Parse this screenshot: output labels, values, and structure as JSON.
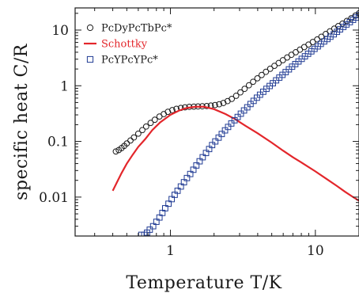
{
  "chart_data": {
    "type": "scatter",
    "xlabel": "Temperature T/K",
    "ylabel": "specific heat C/R",
    "xscale": "log",
    "yscale": "log",
    "xlim": [
      0.22,
      20
    ],
    "ylim": [
      0.002,
      25
    ],
    "x_ticks": [
      {
        "value": 1,
        "label": "1"
      },
      {
        "value": 10,
        "label": "10"
      }
    ],
    "y_ticks": [
      {
        "value": 0.01,
        "label": "0.01"
      },
      {
        "value": 0.1,
        "label": "0.1"
      },
      {
        "value": 1,
        "label": "1"
      },
      {
        "value": 10,
        "label": "10"
      }
    ],
    "grid": false,
    "legend_position": "top-left",
    "series": [
      {
        "name": "PcDyPcTbPc*",
        "marker": "circle-open",
        "color": "#1a1a1a",
        "points": [
          [
            0.42,
            0.066
          ],
          [
            0.44,
            0.07
          ],
          [
            0.46,
            0.076
          ],
          [
            0.48,
            0.083
          ],
          [
            0.5,
            0.092
          ],
          [
            0.53,
            0.104
          ],
          [
            0.56,
            0.118
          ],
          [
            0.6,
            0.138
          ],
          [
            0.64,
            0.16
          ],
          [
            0.68,
            0.185
          ],
          [
            0.73,
            0.215
          ],
          [
            0.78,
            0.245
          ],
          [
            0.84,
            0.28
          ],
          [
            0.9,
            0.31
          ],
          [
            0.96,
            0.34
          ],
          [
            1.03,
            0.365
          ],
          [
            1.1,
            0.385
          ],
          [
            1.18,
            0.4
          ],
          [
            1.26,
            0.41
          ],
          [
            1.35,
            0.418
          ],
          [
            1.45,
            0.422
          ],
          [
            1.55,
            0.425
          ],
          [
            1.66,
            0.428
          ],
          [
            1.78,
            0.432
          ],
          [
            1.9,
            0.44
          ],
          [
            2.03,
            0.45
          ],
          [
            2.17,
            0.465
          ],
          [
            2.32,
            0.49
          ],
          [
            2.48,
            0.53
          ],
          [
            2.65,
            0.58
          ],
          [
            2.84,
            0.66
          ],
          [
            3.04,
            0.76
          ],
          [
            3.25,
            0.88
          ],
          [
            3.48,
            1.02
          ],
          [
            3.72,
            1.18
          ],
          [
            3.98,
            1.36
          ],
          [
            4.26,
            1.56
          ],
          [
            4.56,
            1.78
          ],
          [
            4.88,
            2.02
          ],
          [
            5.22,
            2.28
          ],
          [
            5.58,
            2.56
          ],
          [
            5.97,
            2.88
          ],
          [
            6.39,
            3.22
          ],
          [
            6.84,
            3.6
          ],
          [
            7.32,
            4.0
          ],
          [
            7.83,
            4.45
          ],
          [
            8.38,
            4.95
          ],
          [
            8.97,
            5.5
          ],
          [
            9.6,
            6.1
          ],
          [
            10.3,
            6.8
          ],
          [
            11.0,
            7.6
          ],
          [
            11.8,
            8.5
          ],
          [
            12.6,
            9.5
          ],
          [
            13.5,
            10.6
          ],
          [
            14.4,
            11.8
          ],
          [
            15.4,
            13.1
          ],
          [
            16.5,
            14.6
          ],
          [
            17.7,
            16.3
          ],
          [
            18.9,
            18.2
          ],
          [
            20.0,
            20.0
          ]
        ]
      },
      {
        "name": "Schottky",
        "marker": "line",
        "color": "#e3262b",
        "points": [
          [
            0.4,
            0.013
          ],
          [
            0.43,
            0.019
          ],
          [
            0.46,
            0.027
          ],
          [
            0.5,
            0.04
          ],
          [
            0.55,
            0.058
          ],
          [
            0.6,
            0.08
          ],
          [
            0.67,
            0.11
          ],
          [
            0.75,
            0.16
          ],
          [
            0.85,
            0.22
          ],
          [
            1.0,
            0.3
          ],
          [
            1.15,
            0.36
          ],
          [
            1.3,
            0.4
          ],
          [
            1.5,
            0.42
          ],
          [
            1.7,
            0.42
          ],
          [
            2.0,
            0.38
          ],
          [
            2.4,
            0.31
          ],
          [
            2.8,
            0.25
          ],
          [
            3.3,
            0.19
          ],
          [
            4.0,
            0.14
          ],
          [
            5.0,
            0.095
          ],
          [
            6.0,
            0.068
          ],
          [
            7.0,
            0.052
          ],
          [
            8.0,
            0.042
          ],
          [
            10.0,
            0.029
          ],
          [
            12.0,
            0.021
          ],
          [
            14.0,
            0.016
          ],
          [
            16.0,
            0.0125
          ],
          [
            18.0,
            0.0102
          ],
          [
            20.0,
            0.0086
          ]
        ]
      },
      {
        "name": "PcYPcYPc*",
        "marker": "square-open",
        "color": "#1f3a93",
        "points": [
          [
            0.63,
            0.0021
          ],
          [
            0.66,
            0.0021
          ],
          [
            0.69,
            0.0023
          ],
          [
            0.72,
            0.0026
          ],
          [
            0.76,
            0.003
          ],
          [
            0.8,
            0.0036
          ],
          [
            0.84,
            0.0043
          ],
          [
            0.88,
            0.0052
          ],
          [
            0.92,
            0.0063
          ],
          [
            0.97,
            0.0076
          ],
          [
            1.02,
            0.0092
          ],
          [
            1.07,
            0.011
          ],
          [
            1.12,
            0.013
          ],
          [
            1.18,
            0.0155
          ],
          [
            1.24,
            0.0185
          ],
          [
            1.3,
            0.022
          ],
          [
            1.37,
            0.026
          ],
          [
            1.44,
            0.031
          ],
          [
            1.51,
            0.037
          ],
          [
            1.59,
            0.044
          ],
          [
            1.67,
            0.052
          ],
          [
            1.76,
            0.062
          ],
          [
            1.85,
            0.073
          ],
          [
            1.94,
            0.086
          ],
          [
            2.04,
            0.1
          ],
          [
            2.15,
            0.117
          ],
          [
            2.26,
            0.136
          ],
          [
            2.38,
            0.158
          ],
          [
            2.5,
            0.182
          ],
          [
            2.63,
            0.21
          ],
          [
            2.77,
            0.24
          ],
          [
            2.91,
            0.275
          ],
          [
            3.06,
            0.315
          ],
          [
            3.22,
            0.36
          ],
          [
            3.39,
            0.41
          ],
          [
            3.57,
            0.47
          ],
          [
            3.75,
            0.535
          ],
          [
            3.95,
            0.61
          ],
          [
            4.15,
            0.69
          ],
          [
            4.37,
            0.78
          ],
          [
            4.6,
            0.88
          ],
          [
            4.84,
            0.99
          ],
          [
            5.09,
            1.11
          ],
          [
            5.36,
            1.25
          ],
          [
            5.64,
            1.4
          ],
          [
            5.93,
            1.57
          ],
          [
            6.24,
            1.76
          ],
          [
            6.57,
            1.97
          ],
          [
            6.91,
            2.2
          ],
          [
            7.27,
            2.45
          ],
          [
            7.65,
            2.73
          ],
          [
            8.05,
            3.04
          ],
          [
            8.47,
            3.38
          ],
          [
            8.91,
            3.75
          ],
          [
            9.38,
            4.15
          ],
          [
            9.87,
            4.6
          ],
          [
            10.4,
            5.1
          ],
          [
            10.9,
            5.65
          ],
          [
            11.5,
            6.25
          ],
          [
            12.1,
            6.9
          ],
          [
            12.7,
            7.6
          ],
          [
            13.4,
            8.4
          ],
          [
            14.1,
            9.3
          ],
          [
            14.8,
            10.3
          ],
          [
            15.6,
            11.4
          ],
          [
            16.4,
            12.6
          ],
          [
            17.3,
            13.9
          ],
          [
            18.2,
            15.3
          ],
          [
            19.1,
            16.8
          ],
          [
            20.0,
            18.5
          ]
        ]
      }
    ]
  }
}
